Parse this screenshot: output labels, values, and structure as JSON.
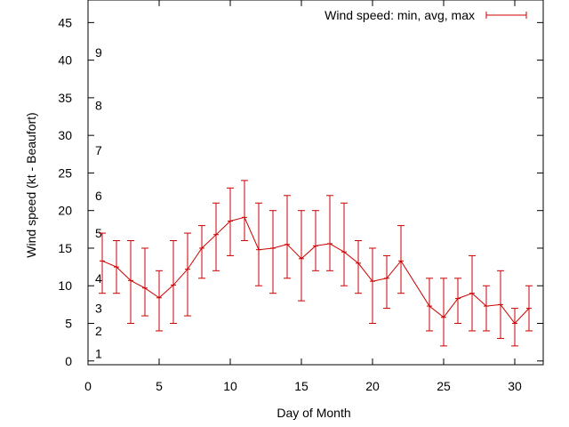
{
  "chart_data": {
    "type": "line",
    "title": "",
    "xlabel": "Day of Month",
    "ylabel": "Wind speed (kt - Beaufort)",
    "xlim": [
      0,
      32
    ],
    "ylim": [
      -0.5,
      48
    ],
    "xticks": [
      0,
      5,
      10,
      15,
      20,
      25,
      30
    ],
    "yticks": [
      0,
      5,
      10,
      15,
      20,
      25,
      30,
      35,
      40,
      45
    ],
    "grid": false,
    "legend_position": "top-right",
    "beaufort_scale": [
      {
        "label": "1",
        "y": 1
      },
      {
        "label": "2",
        "y": 4
      },
      {
        "label": "3",
        "y": 7
      },
      {
        "label": "4",
        "y": 11
      },
      {
        "label": "5",
        "y": 17
      },
      {
        "label": "6",
        "y": 22
      },
      {
        "label": "7",
        "y": 28
      },
      {
        "label": "8",
        "y": 34
      },
      {
        "label": "9",
        "y": 41
      }
    ],
    "series": [
      {
        "name": "Wind speed: min, avg, max",
        "color": "#cc0000",
        "points": [
          {
            "x": 1,
            "avg": 13.3,
            "min": 9,
            "max": 17
          },
          {
            "x": 2,
            "avg": 12.5,
            "min": 9,
            "max": 16
          },
          {
            "x": 3,
            "avg": 10.7,
            "min": 5,
            "max": 16
          },
          {
            "x": 4,
            "avg": 9.7,
            "min": 6,
            "max": 15
          },
          {
            "x": 5,
            "avg": 8.4,
            "min": 4,
            "max": 12
          },
          {
            "x": 6,
            "avg": 10.1,
            "min": 5,
            "max": 16
          },
          {
            "x": 7,
            "avg": 12.2,
            "min": 6,
            "max": 17
          },
          {
            "x": 8,
            "avg": 15.0,
            "min": 11,
            "max": 18
          },
          {
            "x": 9,
            "avg": 16.8,
            "min": 12,
            "max": 21
          },
          {
            "x": 10,
            "avg": 18.6,
            "min": 14,
            "max": 23
          },
          {
            "x": 11,
            "avg": 19.1,
            "min": 16,
            "max": 24
          },
          {
            "x": 12,
            "avg": 14.8,
            "min": 10,
            "max": 21
          },
          {
            "x": 13,
            "avg": 15.0,
            "min": 9,
            "max": 20
          },
          {
            "x": 14,
            "avg": 15.5,
            "min": 11,
            "max": 22
          },
          {
            "x": 15,
            "avg": 13.6,
            "min": 8,
            "max": 20
          },
          {
            "x": 16,
            "avg": 15.3,
            "min": 12,
            "max": 20
          },
          {
            "x": 17,
            "avg": 15.6,
            "min": 12,
            "max": 22
          },
          {
            "x": 18,
            "avg": 14.5,
            "min": 10,
            "max": 21
          },
          {
            "x": 19,
            "avg": 13.0,
            "min": 9,
            "max": 16
          },
          {
            "x": 20,
            "avg": 10.6,
            "min": 5,
            "max": 15
          },
          {
            "x": 21,
            "avg": 11.0,
            "min": 7,
            "max": 14
          },
          {
            "x": 22,
            "avg": 13.3,
            "min": 9,
            "max": 18
          },
          {
            "x": 24,
            "avg": 7.3,
            "min": 4,
            "max": 11
          },
          {
            "x": 25,
            "avg": 5.8,
            "min": 2,
            "max": 11
          },
          {
            "x": 26,
            "avg": 8.3,
            "min": 5,
            "max": 11
          },
          {
            "x": 27,
            "avg": 9.0,
            "min": 4,
            "max": 14
          },
          {
            "x": 28,
            "avg": 7.3,
            "min": 4,
            "max": 10
          },
          {
            "x": 29,
            "avg": 7.5,
            "min": 3,
            "max": 12
          },
          {
            "x": 30,
            "avg": 5.0,
            "min": 2,
            "max": 7
          },
          {
            "x": 31,
            "avg": 7.0,
            "min": 4,
            "max": 10
          }
        ]
      }
    ]
  }
}
